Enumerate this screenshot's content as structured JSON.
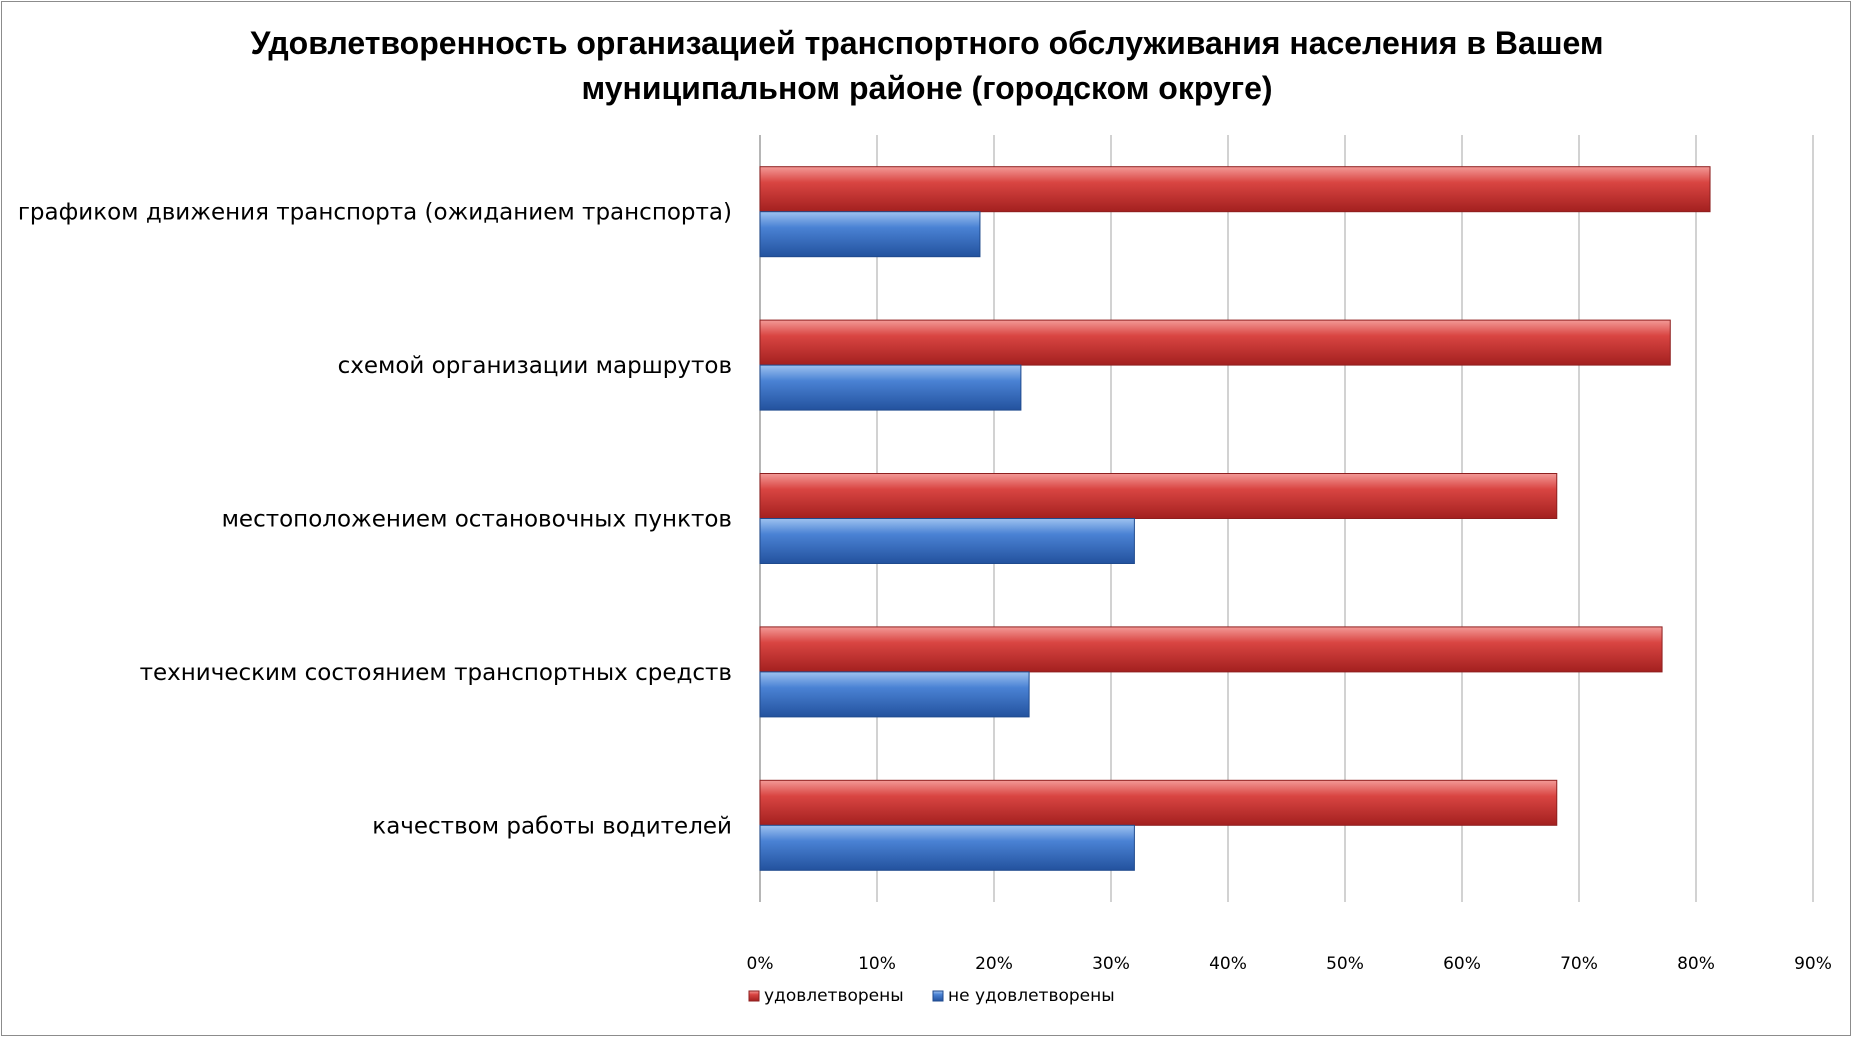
{
  "chart_data": {
    "type": "bar",
    "orientation": "horizontal",
    "title": "Удовлетворенность организацией транспортного обслуживания населения в Вашем муниципальном районе (городском округе)",
    "title_lines": [
      "Удовлетворенность организацией транспортного обслуживания населения в Вашем",
      "муниципальном районе (городском округе)"
    ],
    "categories": [
      "графиком движения транспорта (ожиданием транспорта)",
      "схемой организации маршрутов",
      "местоположением остановочных пунктов",
      "техническим состоянием транспортных средств",
      "качеством работы водителей"
    ],
    "series": [
      {
        "name": "удовлетворены",
        "color": "#c0393b",
        "values": [
          81.2,
          77.8,
          68.1,
          77.1,
          68.1
        ]
      },
      {
        "name": "не удовлетворены",
        "color": "#3f75c4",
        "values": [
          18.8,
          22.3,
          32.0,
          23.0,
          32.0
        ]
      }
    ],
    "xlim": [
      0,
      90
    ],
    "xticks": [
      "0%",
      "10%",
      "20%",
      "30%",
      "40%",
      "50%",
      "60%",
      "70%",
      "80%",
      "90%"
    ],
    "grid": true,
    "legend_position": "bottom"
  }
}
